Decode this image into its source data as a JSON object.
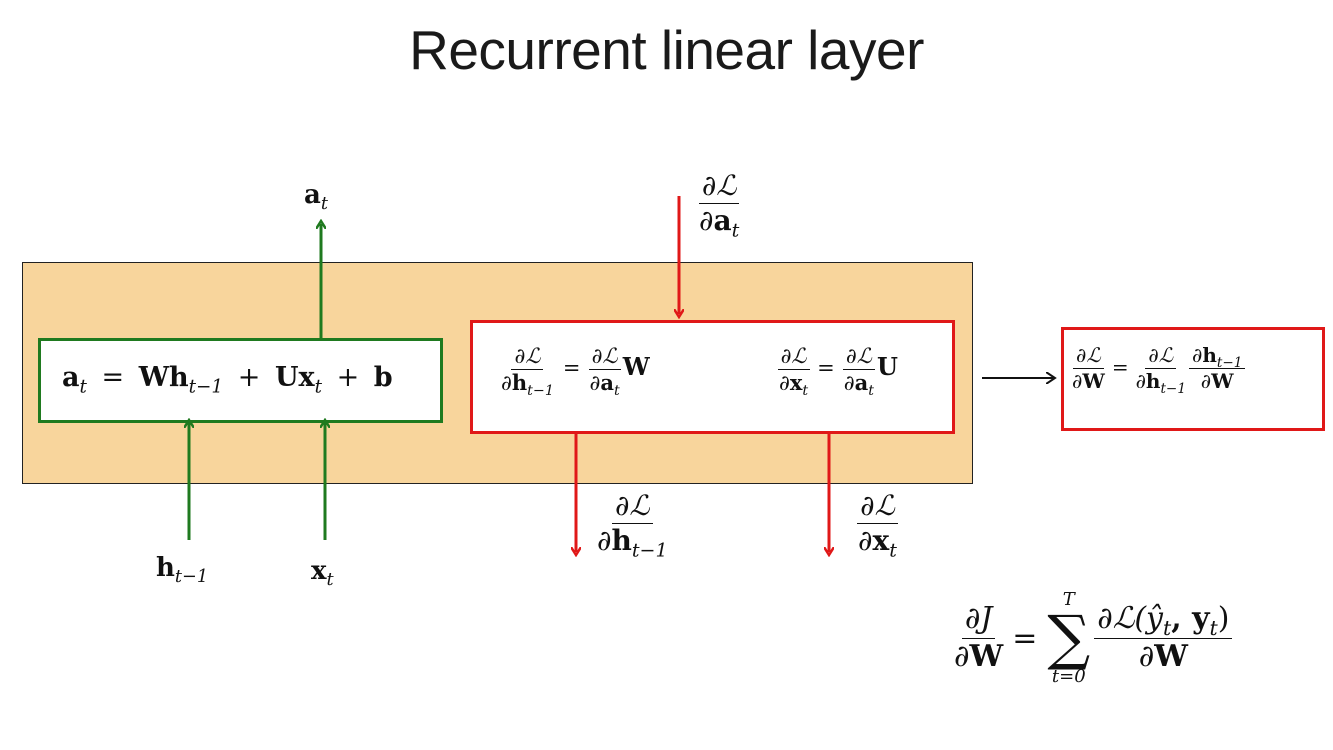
{
  "title": "Recurrent linear layer",
  "labels": {
    "a_out": "a",
    "a_out_sub": "t",
    "h_in": "h",
    "h_in_sub": "t−1",
    "x_in": "x",
    "x_in_sub": "t"
  },
  "forward_equation": {
    "a": "a",
    "a_sub": "t",
    "eq": "=",
    "W": "W",
    "h": "h",
    "h_sub": "t−1",
    "plus1": "+",
    "U": "U",
    "x": "x",
    "x_sub": "t",
    "plus2": "+",
    "b": "b"
  },
  "gradients": {
    "partial": "∂",
    "loss": "ℒ",
    "a": "a",
    "t": "t",
    "h": "h",
    "tm1": "t−1",
    "x": "x",
    "W": "W",
    "U": "U",
    "eq": "="
  },
  "total_loss": {
    "partial": "∂",
    "J": "J",
    "W": "W",
    "eq": "=",
    "sum_sym": "∑",
    "upper": "T",
    "lower": "t=0",
    "loss_args": "ℒ(ŷ",
    "loss_t1": "t",
    "comma": ", y",
    "loss_t2": "t",
    "close": ")"
  },
  "colors": {
    "forward": "#1f7a1f",
    "backward": "#e01818",
    "layer_bg": "#f8d59c"
  }
}
